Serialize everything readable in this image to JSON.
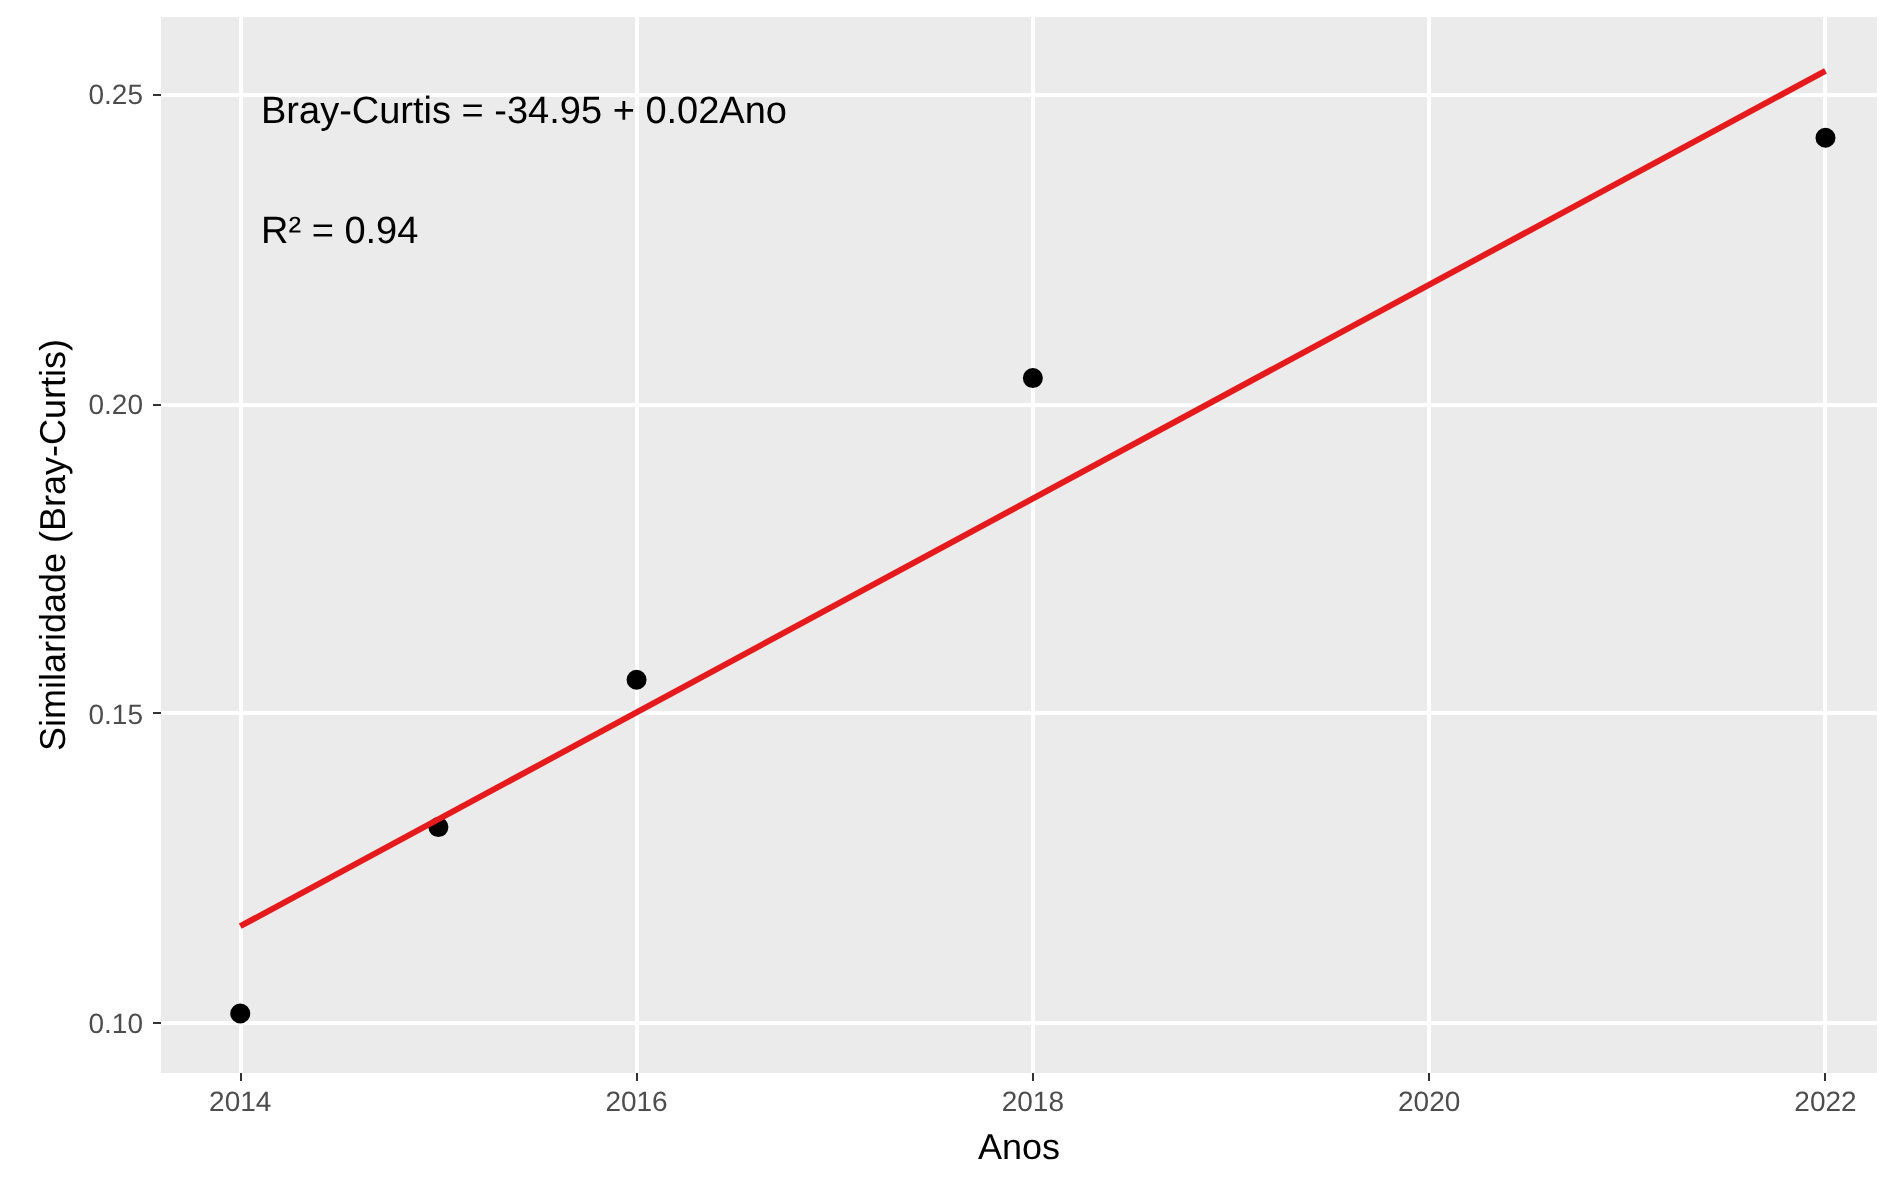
{
  "chart_data": {
    "type": "scatter",
    "xlabel": "Anos",
    "ylabel": "Similaridade (Bray-Curtis)",
    "series": [
      {
        "color": "#000000",
        "marker": "circle",
        "x": [
          2014,
          2015,
          2016,
          2018,
          2022
        ],
        "values": [
          0.1016,
          0.1317,
          0.1555,
          0.2042,
          0.243
        ]
      },
      {
        "type": "line",
        "color": "#e41a1c",
        "x": [
          2014,
          2022
        ],
        "values": [
          0.1157,
          0.2538
        ]
      }
    ],
    "xlim": [
      2013.6,
      2022.26
    ],
    "ylim": [
      0.092,
      0.2625
    ],
    "xticks": [
      2014,
      2016,
      2018,
      2020,
      2022
    ],
    "yticks": [
      {
        "value": 0.1,
        "label": "0.10"
      },
      {
        "value": 0.15,
        "label": "0.15"
      },
      {
        "value": 0.2,
        "label": "0.20"
      },
      {
        "value": 0.25,
        "label": "0.25"
      }
    ],
    "annotations": [
      "Bray-Curtis = -34.95 + 0.02Ano",
      "R² = 0.94"
    ],
    "grid": true
  }
}
